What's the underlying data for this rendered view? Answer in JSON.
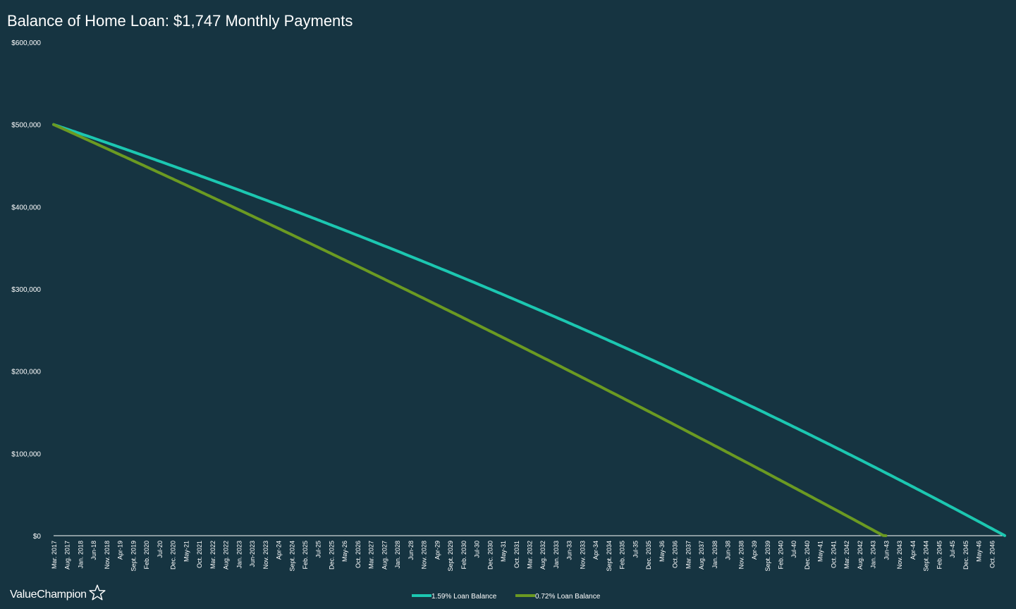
{
  "chart_data": {
    "type": "line",
    "title": "Balance of Home Loan: $1,747 Monthly Payments",
    "xlabel": "",
    "ylabel": "",
    "ylim": [
      0,
      600000
    ],
    "y_ticks": [
      0,
      100000,
      200000,
      300000,
      400000,
      500000,
      600000
    ],
    "y_tick_labels": [
      "$0",
      "$100,000",
      "$200,000",
      "$300,000",
      "$400,000",
      "$500,000",
      "$600,000"
    ],
    "x_start": "Mar. 2017",
    "x_months_total": 360,
    "x_tick_step_months": 5,
    "x_tick_labels": [
      "Mar. 2017",
      "Aug. 2017",
      "Jan. 2018",
      "Jun-18",
      "Nov. 2018",
      "Apr-19",
      "Sept. 2019",
      "Feb. 2020",
      "Jul-20",
      "Dec. 2020",
      "May-21",
      "Oct. 2021",
      "Mar. 2022",
      "Aug. 2022",
      "Jan. 2023",
      "Jun-2023",
      "Nov. 2023",
      "Apr-24",
      "Sept. 2024",
      "Feb. 2025",
      "Jul-25",
      "Dec. 2025",
      "May-26",
      "Oct. 2026",
      "Mar. 2027",
      "Aug. 2027",
      "Jan. 2028",
      "Jun-28",
      "Nov. 2028",
      "Apr-29",
      "Sept. 2029",
      "Feb. 2030",
      "Jul-30",
      "Dec. 2030",
      "May-31",
      "Oct. 2031",
      "Mar. 2032",
      "Aug. 2032",
      "Jan. 2033",
      "Jun-33",
      "Nov. 2033",
      "Apr-34",
      "Sept. 2034",
      "Feb. 2035",
      "Jul-35",
      "Dec. 2035",
      "May-36",
      "Oct. 2036",
      "Mar. 2037",
      "Aug. 2037",
      "Jan. 2038",
      "Jun-38",
      "Nov. 2038",
      "Apr-39",
      "Sept. 2039",
      "Feb. 2040",
      "Jul-40",
      "Dec. 2040",
      "May-41",
      "Oct. 2041",
      "Mar. 2042",
      "Aug. 2042",
      "Jan. 2043",
      "Jun-43",
      "Nov. 2043",
      "Apr-44",
      "Sept. 2044",
      "Feb. 2045",
      "Jul-45",
      "Dec. 2045",
      "May-46",
      "Oct. 2046"
    ],
    "series": [
      {
        "name": "1.59% Loan Balance",
        "color": "#1cc7b1",
        "principal": 500000,
        "annual_rate": 0.0159,
        "payment": 1747
      },
      {
        "name": "0.72% Loan Balance",
        "color": "#6b9a22",
        "principal": 500000,
        "annual_rate": 0.0072,
        "payment": 1747
      }
    ],
    "grid": false,
    "legend_position": "bottom-center"
  },
  "brand": {
    "logo_text": "ValueChampion",
    "logo_icon": "star-outline-icon"
  }
}
